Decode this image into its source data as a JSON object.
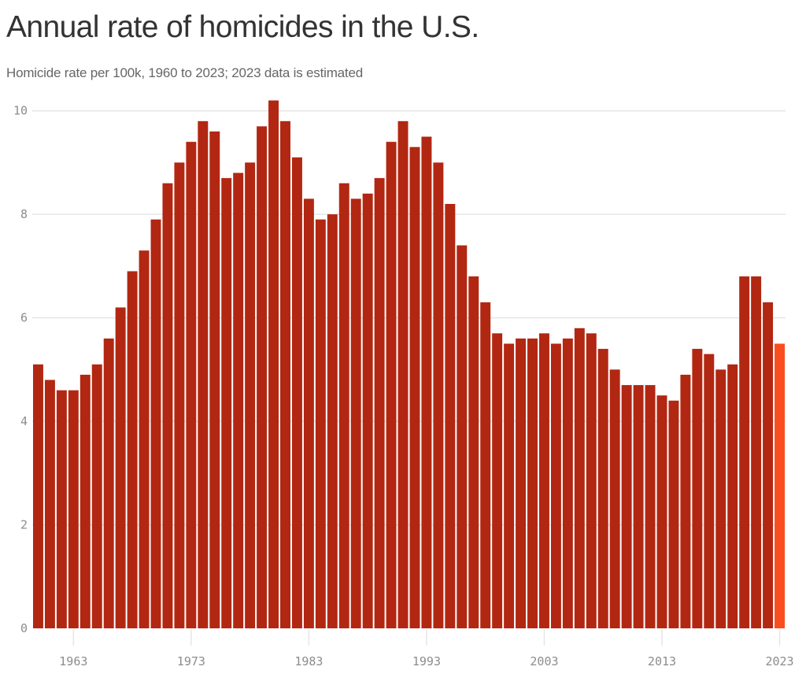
{
  "title": "Annual rate of homicides in the U.S.",
  "subtitle": "Homicide rate per 100k, 1960 to 2023; 2023 data is estimated",
  "colors": {
    "bar": "#b22712",
    "estimated_bar": "#fb4e1f",
    "grid": "#e6e6e6",
    "tick_text": "#8c8c8c",
    "title": "#333333",
    "subtitle": "#666666"
  },
  "chart_data": {
    "type": "bar",
    "title": "Annual rate of homicides in the U.S.",
    "subtitle": "Homicide rate per 100k, 1960 to 2023; 2023 data is estimated",
    "xlabel": "",
    "ylabel": "",
    "ylim": [
      0,
      10
    ],
    "grid": true,
    "legend": "none",
    "y_ticks": [
      "0",
      "2",
      "4",
      "6",
      "8",
      "10"
    ],
    "y_tick_values": [
      0,
      2,
      4,
      6,
      8,
      10
    ],
    "x_ticks": [
      "1963",
      "1973",
      "1983",
      "1993",
      "2003",
      "2013",
      "2023"
    ],
    "x_tick_values": [
      1963,
      1973,
      1983,
      1993,
      2003,
      2013,
      2023
    ],
    "estimated_categories": [
      2023
    ],
    "categories": [
      1960,
      1961,
      1962,
      1963,
      1964,
      1965,
      1966,
      1967,
      1968,
      1969,
      1970,
      1971,
      1972,
      1973,
      1974,
      1975,
      1976,
      1977,
      1978,
      1979,
      1980,
      1981,
      1982,
      1983,
      1984,
      1985,
      1986,
      1987,
      1988,
      1989,
      1990,
      1991,
      1992,
      1993,
      1994,
      1995,
      1996,
      1997,
      1998,
      1999,
      2000,
      2001,
      2002,
      2003,
      2004,
      2005,
      2006,
      2007,
      2008,
      2009,
      2010,
      2011,
      2012,
      2013,
      2014,
      2015,
      2016,
      2017,
      2018,
      2019,
      2020,
      2021,
      2022,
      2023
    ],
    "values": [
      5.1,
      4.8,
      4.6,
      4.6,
      4.9,
      5.1,
      5.6,
      6.2,
      6.9,
      7.3,
      7.9,
      8.6,
      9.0,
      9.4,
      9.8,
      9.6,
      8.7,
      8.8,
      9.0,
      9.7,
      10.2,
      9.8,
      9.1,
      8.3,
      7.9,
      8.0,
      8.6,
      8.3,
      8.4,
      8.7,
      9.4,
      9.8,
      9.3,
      9.5,
      9.0,
      8.2,
      7.4,
      6.8,
      6.3,
      5.7,
      5.5,
      5.6,
      5.6,
      5.7,
      5.5,
      5.6,
      5.8,
      5.7,
      5.4,
      5.0,
      4.7,
      4.7,
      4.7,
      4.5,
      4.4,
      4.9,
      5.4,
      5.3,
      5.0,
      5.1,
      6.8,
      6.8,
      6.3,
      5.5
    ]
  }
}
